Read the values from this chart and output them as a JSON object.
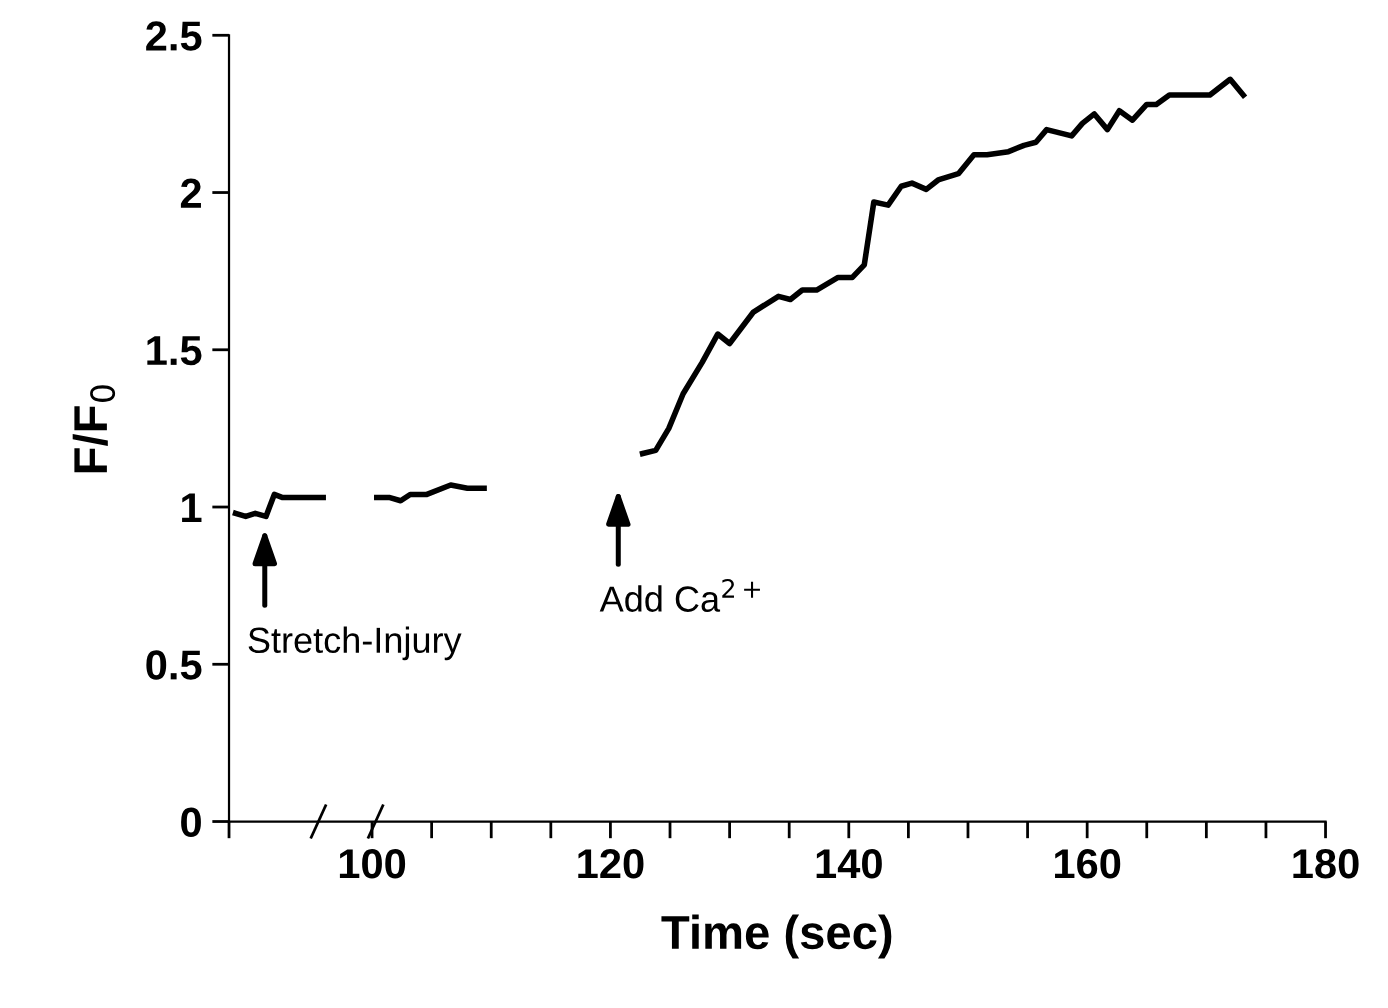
{
  "chart_data": {
    "type": "line",
    "xlabel": "Time (sec)",
    "ylabel": "F/F$_{0}$",
    "series": [
      {
        "color": "#000000",
        "x": [
          88.55,
          89.4,
          90.2,
          91.1,
          91.8,
          92.5,
          93.35,
          95.9
        ],
        "values": [
          0.98,
          0.97,
          0.98,
          0.97,
          1.04,
          1.03,
          1.03,
          1.03
        ]
      },
      {
        "color": "#000000",
        "x": [
          100.4,
          101.5,
          102.4,
          103.2,
          104.6,
          106.6,
          108.0,
          109.4
        ],
        "values": [
          1.03,
          1.03,
          1.02,
          1.04,
          1.04,
          1.07,
          1.06,
          1.06
        ]
      },
      {
        "color": "#000000",
        "x": [
          122.7,
          123.8,
          124.9,
          126.1,
          127.7,
          129.0,
          130.0,
          132.0,
          134.1,
          135.1,
          136.1,
          137.3,
          139.1,
          140.3,
          141.3,
          142.1,
          143.3,
          144.4,
          145.3,
          146.5,
          147.5,
          149.2,
          150.5,
          151.6,
          153.4,
          154.7,
          155.7,
          156.6,
          158.7,
          159.6,
          160.6,
          161.7,
          162.7,
          163.8,
          165.0,
          165.8,
          166.9,
          168.1,
          170.3,
          172.0,
          173.1
        ],
        "values": [
          1.17,
          1.18,
          1.25,
          1.36,
          1.46,
          1.55,
          1.52,
          1.62,
          1.67,
          1.66,
          1.69,
          1.69,
          1.73,
          1.73,
          1.77,
          1.97,
          1.96,
          2.02,
          2.03,
          2.01,
          2.04,
          2.06,
          2.12,
          2.12,
          2.13,
          2.15,
          2.16,
          2.2,
          2.18,
          2.22,
          2.25,
          2.2,
          2.26,
          2.23,
          2.28,
          2.28,
          2.31,
          2.31,
          2.31,
          2.36,
          2.31
        ]
      }
    ],
    "xlim": [
      88,
      180
    ],
    "xticks": [
      {
        "value": 88,
        "label": null
      },
      100,
      {
        "value": 105,
        "label": null
      },
      {
        "value": 110,
        "label": null
      },
      {
        "value": 115,
        "label": null
      },
      120,
      {
        "value": 125,
        "label": null
      },
      {
        "value": 130,
        "label": null
      },
      {
        "value": 135,
        "label": null
      },
      140,
      {
        "value": 145,
        "label": null
      },
      {
        "value": 150,
        "label": null
      },
      {
        "value": 155,
        "label": null
      },
      160,
      {
        "value": 165,
        "label": null
      },
      {
        "value": 170,
        "label": null
      },
      {
        "value": 175,
        "label": null
      },
      180
    ],
    "ylim": [
      0,
      2.5
    ],
    "yticks": [
      0,
      0.5,
      1,
      1.5,
      2,
      2.5
    ],
    "annotations": [
      {
        "text": "Stretch-Injury",
        "x": 91,
        "y": 0.95
      },
      "Add Ca$^{2+}$"
    ],
    "grid": false,
    "legend": false,
    "marker": "none",
    "line_style": "solid"
  }
}
